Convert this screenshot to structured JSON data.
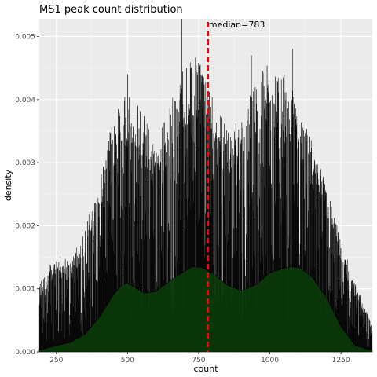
{
  "chart_data": {
    "type": "histogram",
    "title": "MS1 peak count distribution",
    "xlabel": "count",
    "ylabel": "density",
    "xlim": [
      190,
      1360
    ],
    "ylim": [
      0,
      0.00528
    ],
    "x_ticks": [
      250,
      500,
      750,
      1000,
      1250
    ],
    "y_ticks": [
      0,
      0.001,
      0.002,
      0.003,
      0.004,
      0.005
    ],
    "x_tick_labels": [
      "250",
      "500",
      "750",
      "1000",
      "1250"
    ],
    "y_tick_labels": [
      "0.000",
      "0.001",
      "0.002",
      "0.003",
      "0.004",
      "0.005"
    ],
    "bar_color": "#000000",
    "panel_background": "#ebebeb",
    "grid": true,
    "density_curve": {
      "fill": "#0a3a0a",
      "x": [
        190,
        250,
        300,
        350,
        400,
        450,
        480,
        500,
        530,
        560,
        600,
        650,
        700,
        730,
        760,
        800,
        850,
        900,
        950,
        1000,
        1050,
        1080,
        1110,
        1150,
        1200,
        1250,
        1300,
        1360
      ],
      "y": [
        3e-05,
        0.0001,
        0.00015,
        0.00028,
        0.00054,
        0.0009,
        0.00106,
        0.00109,
        0.00101,
        0.00093,
        0.00096,
        0.00113,
        0.00128,
        0.00135,
        0.00134,
        0.00124,
        0.00106,
        0.00097,
        0.00106,
        0.00125,
        0.00133,
        0.00135,
        0.00132,
        0.00118,
        0.00085,
        0.0004,
        0.0001,
        2e-05
      ]
    },
    "histogram_envelope": {
      "x": [
        190,
        250,
        300,
        350,
        400,
        450,
        500,
        550,
        600,
        650,
        700,
        750,
        800,
        850,
        900,
        950,
        1000,
        1050,
        1100,
        1150,
        1200,
        1250,
        1300,
        1360
      ],
      "y": [
        0.001,
        0.0014,
        0.0013,
        0.0018,
        0.0025,
        0.0034,
        0.0038,
        0.0035,
        0.003,
        0.0036,
        0.0042,
        0.0043,
        0.0038,
        0.0032,
        0.0034,
        0.004,
        0.0042,
        0.004,
        0.0036,
        0.003,
        0.0024,
        0.0016,
        0.001,
        0.0004
      ]
    },
    "histogram_peaks": {
      "x": [
        690,
        500,
        1080,
        935
      ],
      "y": [
        0.00528,
        0.0044,
        0.0048,
        0.0047
      ]
    },
    "median_line": {
      "x": 783,
      "color": "#ff0000",
      "label": "median=783"
    }
  }
}
